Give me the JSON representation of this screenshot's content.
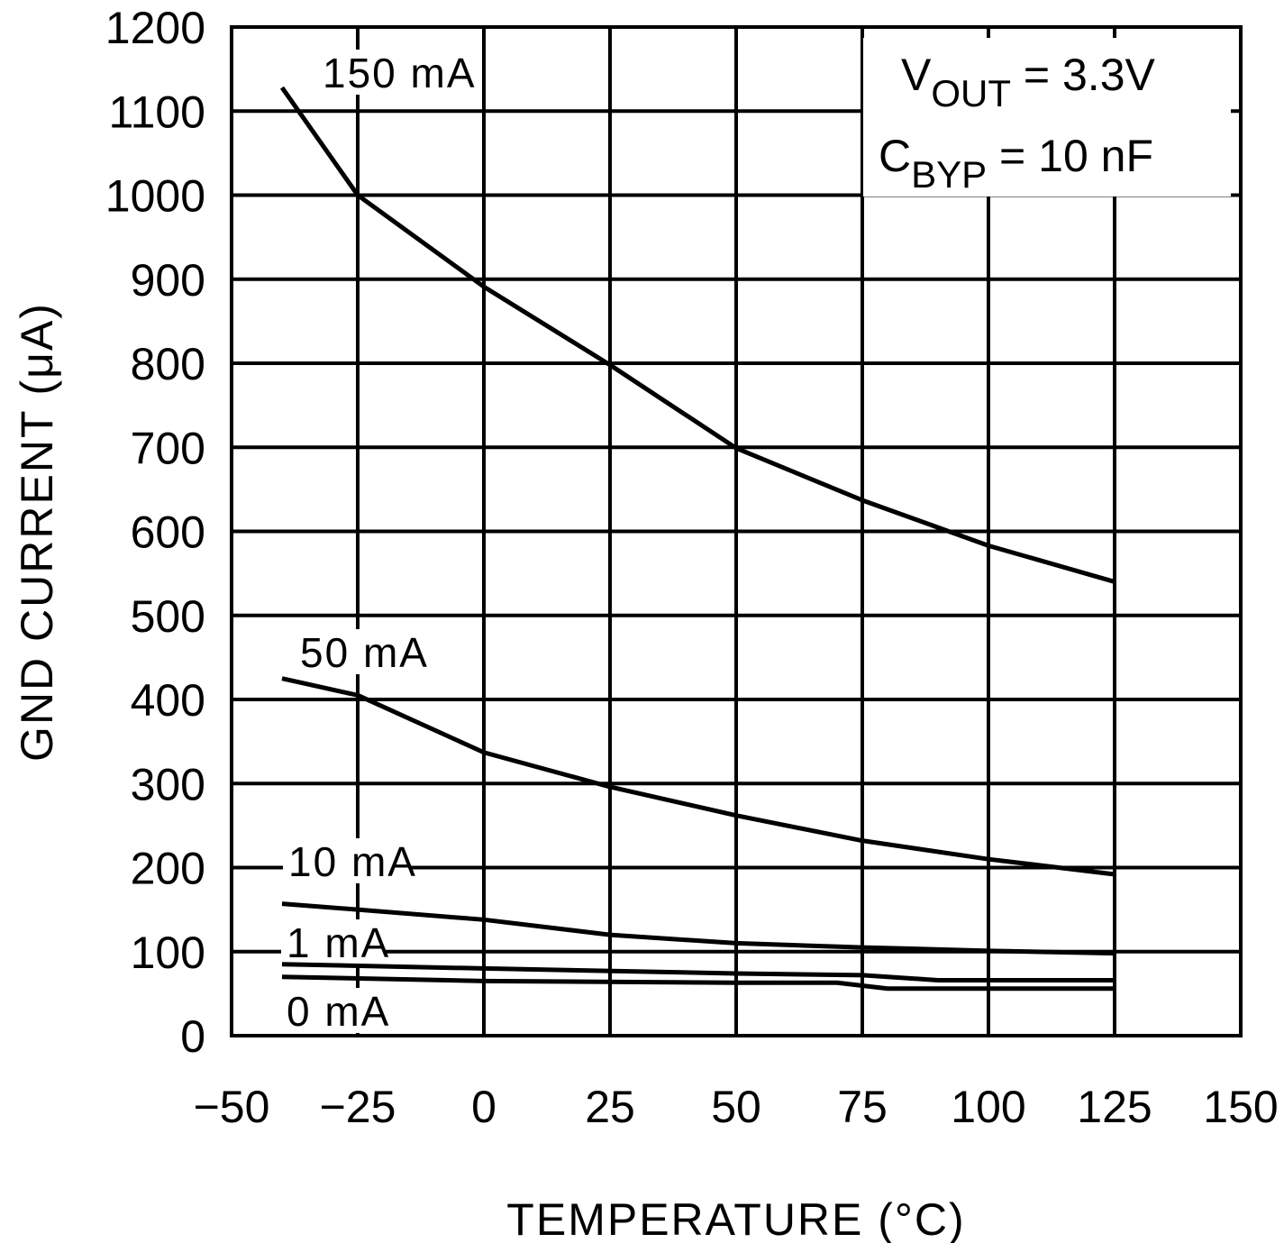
{
  "chart_data": {
    "type": "line",
    "xlabel": "TEMPERATURE (°C)",
    "ylabel": "GND CURRENT (μA)",
    "xlim": [
      -50,
      150
    ],
    "ylim": [
      0,
      1200
    ],
    "xticks": [
      -50,
      -25,
      0,
      25,
      50,
      75,
      100,
      125,
      150
    ],
    "yticks": [
      0,
      100,
      200,
      300,
      400,
      500,
      600,
      700,
      800,
      900,
      1000,
      1100,
      1200
    ],
    "xtick_labels": [
      "−50",
      "−25",
      "0",
      "25",
      "50",
      "75",
      "100",
      "125",
      "150"
    ],
    "grid": true,
    "annotation": {
      "line1_main": "V",
      "line1_sub": "OUT",
      "line1_rest": " = 3.3V",
      "line2_main": "C",
      "line2_sub": "BYP",
      "line2_rest": " = 10 nF"
    },
    "series": [
      {
        "name": "150 mA",
        "x": [
          -40,
          -25,
          0,
          25,
          50,
          75,
          100,
          125
        ],
        "y": [
          1128,
          1000,
          891,
          798,
          699,
          637,
          583,
          540
        ]
      },
      {
        "name": "50 mA",
        "x": [
          -40,
          -25,
          0,
          25,
          50,
          75,
          100,
          125
        ],
        "y": [
          425,
          405,
          337,
          296,
          262,
          232,
          210,
          192
        ]
      },
      {
        "name": "10 mA",
        "x": [
          -40,
          -25,
          0,
          25,
          50,
          75,
          100,
          125
        ],
        "y": [
          157,
          150,
          138,
          120,
          110,
          105,
          101,
          98
        ]
      },
      {
        "name": "1 mA",
        "x": [
          -40,
          0,
          50,
          75,
          90,
          125
        ],
        "y": [
          85,
          80,
          74,
          72,
          66,
          66
        ]
      },
      {
        "name": "0 mA",
        "x": [
          -40,
          0,
          50,
          70,
          80,
          125
        ],
        "y": [
          70,
          65,
          63,
          63,
          56,
          56
        ]
      }
    ],
    "colors": {
      "line": "#000000",
      "background": "#ffffff"
    }
  }
}
